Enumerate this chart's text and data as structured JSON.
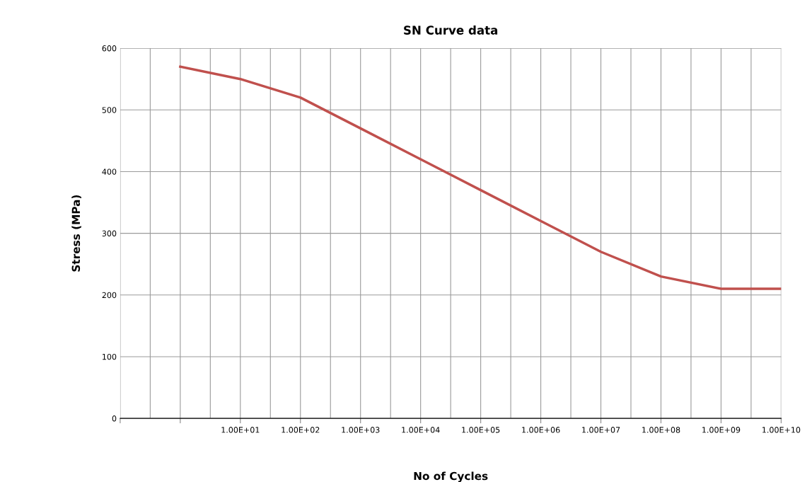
{
  "chart_data": {
    "type": "line",
    "title": "SN Curve data",
    "xlabel": "No of Cycles",
    "ylabel": "Stress (MPa)",
    "categories": [
      null,
      null,
      "1.00E+01",
      "1.00E+02",
      "1.00E+03",
      "1.00E+04",
      "1.00E+05",
      "1.00E+06",
      "1.00E+07",
      "1.00E+08",
      "1.00E+09",
      "1.00E+10"
    ],
    "series": [
      {
        "color": "#c0504d",
        "values": [
          null,
          570,
          550,
          520,
          470,
          420,
          370,
          320,
          270,
          230,
          210,
          210
        ]
      }
    ],
    "ylim": [
      0,
      600
    ],
    "yticks": [
      0,
      100,
      200,
      300,
      400,
      500,
      600
    ],
    "grid": true,
    "marker": "none",
    "line_style": "solid"
  }
}
